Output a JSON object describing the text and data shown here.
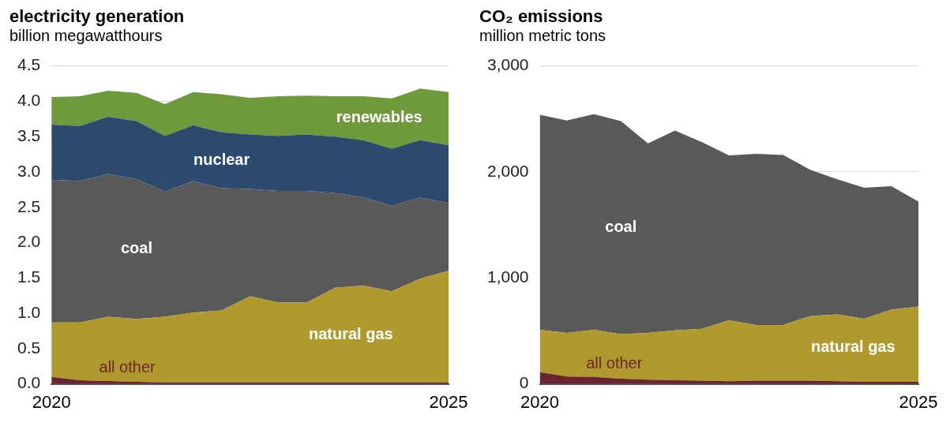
{
  "chart_data": [
    {
      "type": "area",
      "title": "electricity generation",
      "subtitle": "billion megawatthours",
      "stacked": true,
      "grid": "y",
      "legend": false,
      "categories": [
        "2020",
        null,
        null,
        null,
        null,
        null,
        null,
        null,
        null,
        null,
        null,
        null,
        null,
        null,
        "2025"
      ],
      "ylim": [
        0,
        4.5
      ],
      "yticks": [
        {
          "value": 0,
          "label": "0.0"
        },
        {
          "value": 0.5,
          "label": "0.5"
        },
        {
          "value": 1,
          "label": "1.0"
        },
        {
          "value": 1.5,
          "label": "1.5"
        },
        {
          "value": 2,
          "label": "2.0"
        },
        {
          "value": 2.5,
          "label": "2.5"
        },
        {
          "value": 3,
          "label": "3.0"
        },
        {
          "value": 3.5,
          "label": "3.5"
        },
        {
          "value": 4,
          "label": "4.0"
        },
        {
          "value": 4.5,
          "label": "4.5"
        }
      ],
      "series": [
        {
          "name": "all other",
          "color": "#6b2430",
          "values": [
            0.1,
            0.05,
            0.04,
            0.03,
            0.02,
            0.02,
            0.02,
            0.02,
            0.02,
            0.02,
            0.02,
            0.02,
            0.02,
            0.02,
            0.02
          ]
        },
        {
          "name": "natural gas",
          "color": "#b09a2e",
          "values": [
            0.77,
            0.82,
            0.91,
            0.89,
            0.93,
            0.99,
            1.02,
            1.22,
            1.13,
            1.13,
            1.34,
            1.37,
            1.29,
            1.47,
            1.58
          ]
        },
        {
          "name": "coal",
          "color": "#595959",
          "values": [
            2.02,
            2.0,
            2.02,
            1.98,
            1.77,
            1.86,
            1.73,
            1.52,
            1.58,
            1.58,
            1.34,
            1.25,
            1.21,
            1.15,
            0.96
          ]
        },
        {
          "name": "nuclear",
          "color": "#2b4a6e",
          "values": [
            0.78,
            0.78,
            0.81,
            0.82,
            0.79,
            0.79,
            0.79,
            0.77,
            0.78,
            0.8,
            0.8,
            0.81,
            0.81,
            0.81,
            0.82
          ]
        },
        {
          "name": "renewables",
          "color": "#6f9a3c",
          "values": [
            0.39,
            0.42,
            0.37,
            0.4,
            0.45,
            0.47,
            0.54,
            0.52,
            0.56,
            0.55,
            0.57,
            0.62,
            0.71,
            0.73,
            0.75
          ]
        }
      ]
    },
    {
      "type": "area",
      "title": "CO₂ emissions",
      "subtitle": "million metric tons",
      "stacked": true,
      "grid": "y",
      "legend": false,
      "categories": [
        "2020",
        null,
        null,
        null,
        null,
        null,
        null,
        null,
        null,
        null,
        null,
        null,
        null,
        null,
        "2025"
      ],
      "ylim": [
        0,
        3000
      ],
      "yticks": [
        0,
        {
          "value": 1000,
          "label": "1,000"
        },
        {
          "value": 2000,
          "label": "2,000"
        },
        {
          "value": 3000,
          "label": "3,000"
        }
      ],
      "series": [
        {
          "name": "all other",
          "color": "#6b2430",
          "values": [
            110,
            70,
            65,
            50,
            40,
            35,
            30,
            25,
            30,
            30,
            30,
            25,
            20,
            20,
            20
          ]
        },
        {
          "name": "natural gas",
          "color": "#b09a2e",
          "values": [
            400,
            410,
            445,
            420,
            440,
            470,
            490,
            575,
            525,
            525,
            610,
            630,
            595,
            680,
            710
          ]
        },
        {
          "name": "coal",
          "color": "#595959",
          "values": [
            2030,
            2005,
            2035,
            2010,
            1790,
            1885,
            1760,
            1555,
            1615,
            1605,
            1380,
            1275,
            1235,
            1165,
            990
          ]
        }
      ]
    }
  ]
}
